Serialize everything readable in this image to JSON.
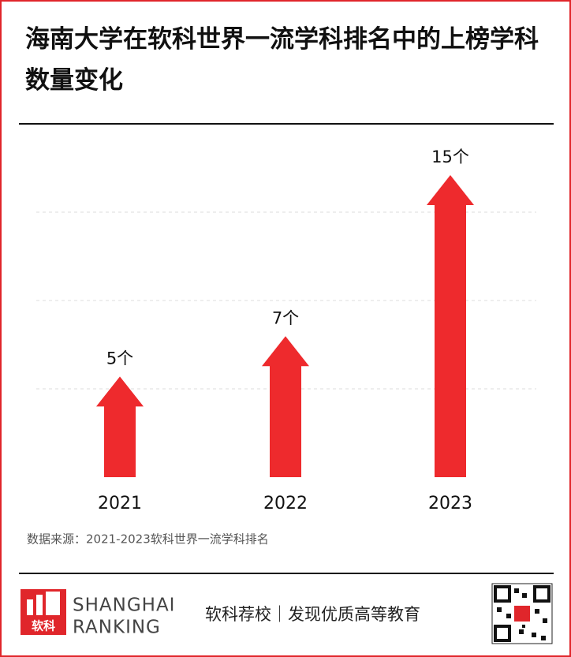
{
  "chart_data": {
    "type": "arrow-bar",
    "title": "海南大学在软科世界一流学科排名中的上榜学科数量变化",
    "categories": [
      "2021",
      "2022",
      "2023"
    ],
    "values": [
      5,
      7,
      15
    ],
    "value_labels": [
      "5个",
      "7个",
      "15个"
    ],
    "color": "#ee2a2d",
    "ylim": [
      0,
      15
    ],
    "source": "数据来源：2021-2023软科世界一流学科排名"
  },
  "footer": {
    "logo": "软科",
    "brand_line1": "SHANGHAI",
    "brand_line2": "RANKING",
    "slogan": "软科荐校｜发现优质高等教育"
  }
}
